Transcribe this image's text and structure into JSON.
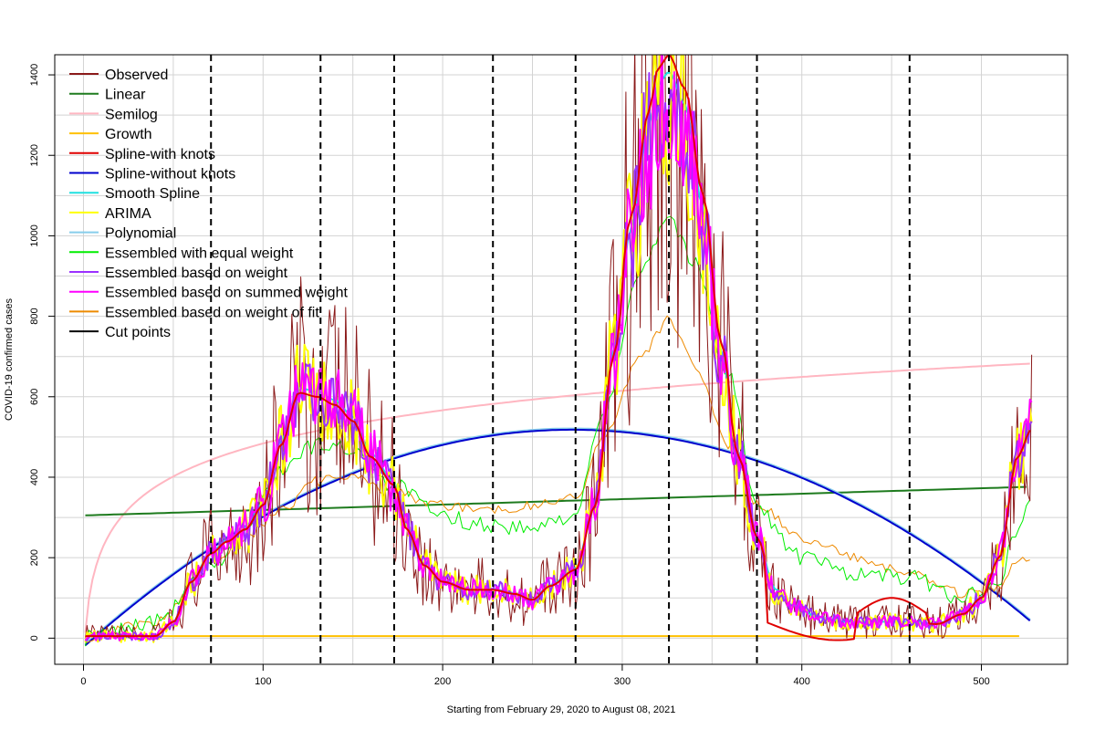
{
  "chart_data": {
    "type": "line",
    "title": "",
    "xlabel": "Starting from February 29, 2020 to August 08, 2021",
    "ylabel": "COVID-19 confirmed cases",
    "xlim": [
      -16,
      548
    ],
    "ylim": [
      -65,
      1450
    ],
    "xticks": [
      0,
      100,
      200,
      300,
      400,
      500
    ],
    "yticks": [
      0,
      200,
      400,
      600,
      800,
      1000,
      1200,
      1400
    ],
    "grid": true,
    "legend_position": "top-left",
    "cut_points": [
      71,
      132,
      173,
      228,
      274,
      326,
      375,
      460
    ],
    "series": [
      {
        "name": "Observed",
        "color": "#8b1a1a",
        "key": "observed"
      },
      {
        "name": "Linear",
        "color": "#1e7b1e",
        "key": "linear"
      },
      {
        "name": "Semilog",
        "color": "#ffb6c1",
        "key": "semilog"
      },
      {
        "name": "Growth",
        "color": "#ffc000",
        "key": "growth"
      },
      {
        "name": "Spline-with knots",
        "color": "#e00000",
        "key": "spline_knots"
      },
      {
        "name": "Spline-without knots",
        "color": "#0000cd",
        "key": "spline_noknots"
      },
      {
        "name": "Smooth Spline",
        "color": "#20e0e0",
        "key": "smooth_spline"
      },
      {
        "name": "ARIMA",
        "color": "#ffff00",
        "key": "arima"
      },
      {
        "name": "Polynomial",
        "color": "#87ceeb",
        "key": "polynomial"
      },
      {
        "name": "Essembled with equal weight",
        "color": "#00ee00",
        "key": "ens_equal"
      },
      {
        "name": "Essembled based on weight",
        "color": "#9b30ff",
        "key": "ens_weight"
      },
      {
        "name": "Essembled based on summed weight",
        "color": "#ff00ff",
        "key": "ens_summed"
      },
      {
        "name": "Essembled based on weight of fit",
        "color": "#ee8a00",
        "key": "ens_fit"
      },
      {
        "name": "Cut points",
        "color": "#000000",
        "key": "cut"
      }
    ],
    "smooth_points": {
      "x": [
        0,
        20,
        40,
        50,
        60,
        71,
        80,
        90,
        100,
        110,
        120,
        130,
        140,
        150,
        160,
        173,
        180,
        190,
        200,
        215,
        228,
        240,
        250,
        260,
        274,
        285,
        295,
        305,
        315,
        320,
        326,
        335,
        345,
        355,
        365,
        375,
        385,
        395,
        410,
        425,
        440,
        460,
        475,
        490,
        500,
        510,
        520,
        528
      ],
      "y": [
        5,
        5,
        5,
        40,
        140,
        210,
        240,
        270,
        330,
        480,
        610,
        600,
        580,
        540,
        450,
        380,
        270,
        180,
        140,
        120,
        120,
        110,
        95,
        130,
        170,
        330,
        700,
        1000,
        1250,
        1350,
        1380,
        1300,
        1050,
        700,
        450,
        250,
        120,
        80,
        50,
        40,
        40,
        40,
        35,
        60,
        100,
        200,
        450,
        520
      ]
    },
    "equal_weight_points": {
      "x": [
        0,
        40,
        71,
        90,
        110,
        130,
        150,
        173,
        200,
        228,
        250,
        274,
        290,
        310,
        326,
        340,
        360,
        375,
        400,
        430,
        460,
        490,
        510,
        520,
        528
      ],
      "y": [
        0,
        40,
        170,
        270,
        420,
        480,
        470,
        380,
        300,
        280,
        270,
        310,
        560,
        920,
        1050,
        930,
        650,
        320,
        200,
        160,
        150,
        100,
        150,
        270,
        350
      ]
    },
    "fit_weight_points": {
      "x": [
        0,
        40,
        71,
        90,
        110,
        130,
        150,
        173,
        200,
        228,
        250,
        274,
        290,
        310,
        326,
        340,
        360,
        375,
        400,
        430,
        460,
        490,
        510,
        520,
        528
      ],
      "y": [
        0,
        40,
        190,
        250,
        320,
        390,
        400,
        360,
        330,
        320,
        330,
        350,
        500,
        700,
        790,
        680,
        480,
        330,
        250,
        200,
        160,
        110,
        130,
        190,
        200
      ]
    }
  }
}
